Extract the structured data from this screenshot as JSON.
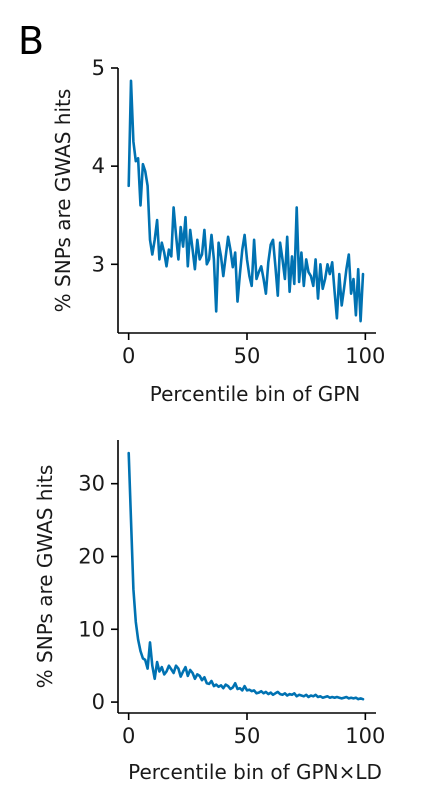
{
  "panel_label": "B",
  "line_color": "#0072B2",
  "chart_data": [
    {
      "type": "line",
      "xlabel": "Percentile bin of GPN",
      "ylabel": "% SNPs are GWAS hits",
      "xlim": [
        -4.5,
        104.5
      ],
      "ylim": [
        2.3,
        5.0
      ],
      "xticks": [
        0,
        50,
        100
      ],
      "yticks": [
        3,
        4,
        5
      ],
      "grid": false,
      "series": [
        {
          "x": [
            0,
            1,
            2,
            3,
            4,
            5,
            6,
            7,
            8,
            9,
            10,
            11,
            12,
            13,
            14,
            15,
            16,
            17,
            18,
            19,
            20,
            21,
            22,
            23,
            24,
            25,
            26,
            27,
            28,
            29,
            30,
            31,
            32,
            33,
            34,
            35,
            36,
            37,
            38,
            39,
            40,
            41,
            42,
            43,
            44,
            45,
            46,
            47,
            48,
            49,
            50,
            51,
            52,
            53,
            54,
            55,
            56,
            57,
            58,
            59,
            60,
            61,
            62,
            63,
            64,
            65,
            66,
            67,
            68,
            69,
            70,
            71,
            72,
            73,
            74,
            75,
            76,
            77,
            78,
            79,
            80,
            81,
            82,
            83,
            84,
            85,
            86,
            87,
            88,
            89,
            90,
            91,
            92,
            93,
            94,
            95,
            96,
            97,
            98,
            99
          ],
          "y": [
            3.8,
            4.87,
            4.25,
            4.05,
            4.08,
            3.6,
            4.02,
            3.95,
            3.8,
            3.25,
            3.1,
            3.25,
            3.45,
            3.05,
            3.22,
            3.12,
            2.98,
            3.15,
            3.08,
            3.58,
            3.3,
            3.05,
            3.38,
            3.18,
            3.48,
            2.98,
            3.35,
            3.15,
            2.95,
            3.25,
            3.05,
            3.1,
            3.35,
            3.0,
            3.05,
            3.3,
            3.05,
            2.52,
            3.22,
            3.08,
            2.88,
            3.08,
            3.28,
            3.15,
            2.97,
            3.12,
            2.62,
            2.9,
            3.15,
            3.3,
            3.05,
            2.88,
            2.78,
            3.25,
            2.85,
            2.92,
            2.98,
            2.85,
            2.7,
            3.02,
            3.2,
            3.25,
            2.98,
            2.68,
            3.22,
            3.05,
            2.85,
            3.28,
            2.72,
            3.08,
            2.8,
            3.58,
            2.82,
            3.12,
            2.78,
            3.05,
            2.92,
            2.88,
            2.78,
            3.05,
            2.65,
            3.0,
            2.75,
            2.85,
            3.0,
            2.9,
            3.02,
            2.72,
            2.45,
            2.9,
            2.58,
            2.75,
            2.95,
            3.1,
            2.7,
            2.85,
            2.48,
            2.95,
            2.42,
            2.9
          ]
        }
      ]
    },
    {
      "type": "line",
      "xlabel": "Percentile bin of GPN×LD",
      "ylabel": "% SNPs are GWAS hits",
      "xlim": [
        -4.5,
        104.5
      ],
      "ylim": [
        -1.5,
        36
      ],
      "xticks": [
        0,
        50,
        100
      ],
      "yticks": [
        0,
        10,
        20,
        30
      ],
      "grid": false,
      "series": [
        {
          "x": [
            0,
            1,
            2,
            3,
            4,
            5,
            6,
            7,
            8,
            9,
            10,
            11,
            12,
            13,
            14,
            15,
            16,
            17,
            18,
            19,
            20,
            21,
            22,
            23,
            24,
            25,
            26,
            27,
            28,
            29,
            30,
            31,
            32,
            33,
            34,
            35,
            36,
            37,
            38,
            39,
            40,
            41,
            42,
            43,
            44,
            45,
            46,
            47,
            48,
            49,
            50,
            51,
            52,
            53,
            54,
            55,
            56,
            57,
            58,
            59,
            60,
            61,
            62,
            63,
            64,
            65,
            66,
            67,
            68,
            69,
            70,
            71,
            72,
            73,
            74,
            75,
            76,
            77,
            78,
            79,
            80,
            81,
            82,
            83,
            84,
            85,
            86,
            87,
            88,
            89,
            90,
            91,
            92,
            93,
            94,
            95,
            96,
            97,
            98,
            99
          ],
          "y": [
            34.2,
            25.0,
            15.5,
            11.0,
            8.6,
            7.0,
            6.0,
            5.8,
            4.6,
            8.2,
            5.0,
            3.2,
            5.5,
            4.2,
            4.8,
            3.8,
            4.2,
            5.0,
            4.5,
            4.0,
            5.0,
            4.6,
            3.5,
            4.2,
            4.8,
            3.6,
            4.4,
            4.0,
            3.2,
            3.8,
            3.6,
            3.0,
            3.4,
            2.6,
            2.5,
            2.9,
            2.2,
            2.4,
            2.1,
            2.3,
            1.9,
            2.4,
            2.2,
            1.8,
            2.0,
            2.6,
            1.8,
            1.9,
            1.6,
            2.2,
            1.6,
            1.7,
            1.5,
            1.6,
            1.2,
            1.3,
            1.5,
            1.2,
            1.4,
            1.1,
            1.3,
            1.0,
            1.2,
            1.4,
            1.1,
            1.0,
            1.2,
            0.9,
            1.1,
            1.0,
            1.2,
            0.8,
            1.0,
            0.9,
            0.8,
            1.0,
            0.7,
            0.9,
            0.8,
            1.0,
            0.7,
            0.8,
            0.6,
            0.7,
            0.8,
            0.6,
            0.7,
            0.6,
            0.7,
            0.6,
            0.5,
            0.6,
            0.7,
            0.5,
            0.6,
            0.5,
            0.6,
            0.4,
            0.5,
            0.4
          ]
        }
      ]
    }
  ]
}
